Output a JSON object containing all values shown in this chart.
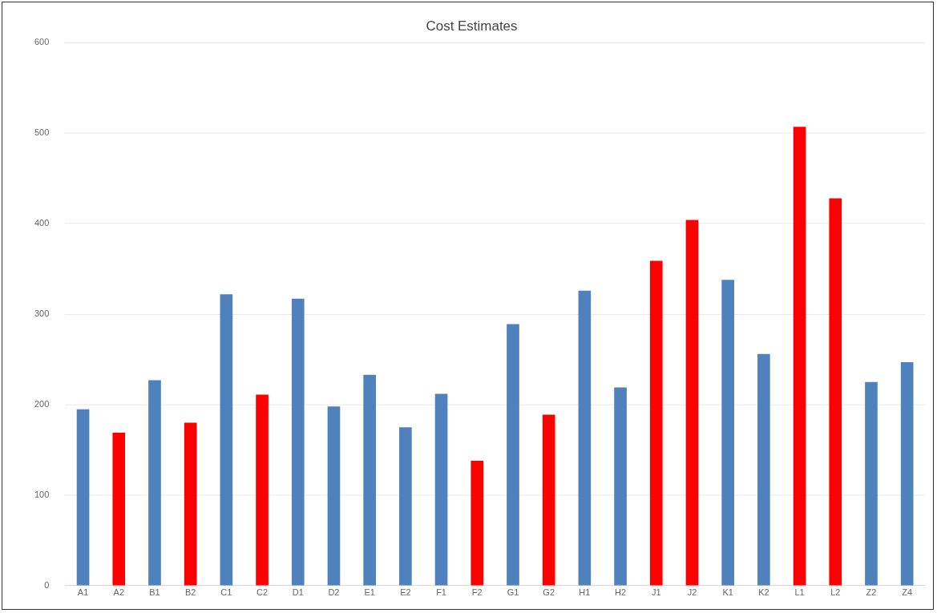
{
  "chart_data": {
    "type": "bar",
    "title": "Cost Estimates",
    "categories": [
      "A1",
      "A2",
      "B1",
      "B2",
      "C1",
      "C2",
      "D1",
      "D2",
      "E1",
      "E2",
      "F1",
      "F2",
      "G1",
      "G2",
      "H1",
      "H2",
      "J1",
      "J2",
      "K1",
      "K2",
      "L1",
      "L2",
      "Z2",
      "Z4"
    ],
    "values": [
      195,
      169,
      227,
      180,
      322,
      211,
      317,
      198,
      233,
      175,
      212,
      138,
      289,
      189,
      326,
      219,
      359,
      404,
      338,
      256,
      507,
      428,
      225,
      247
    ],
    "colors": [
      "#4f81bd",
      "#ff0000",
      "#4f81bd",
      "#ff0000",
      "#4f81bd",
      "#ff0000",
      "#4f81bd",
      "#4f81bd",
      "#4f81bd",
      "#4f81bd",
      "#4f81bd",
      "#ff0000",
      "#4f81bd",
      "#ff0000",
      "#4f81bd",
      "#4f81bd",
      "#ff0000",
      "#ff0000",
      "#4f81bd",
      "#4f81bd",
      "#ff0000",
      "#ff0000",
      "#4f81bd",
      "#4f81bd"
    ],
    "ylim": [
      0,
      600
    ],
    "yticks": [
      0,
      100,
      200,
      300,
      400,
      500,
      600
    ],
    "grid": "y",
    "legend": false
  }
}
